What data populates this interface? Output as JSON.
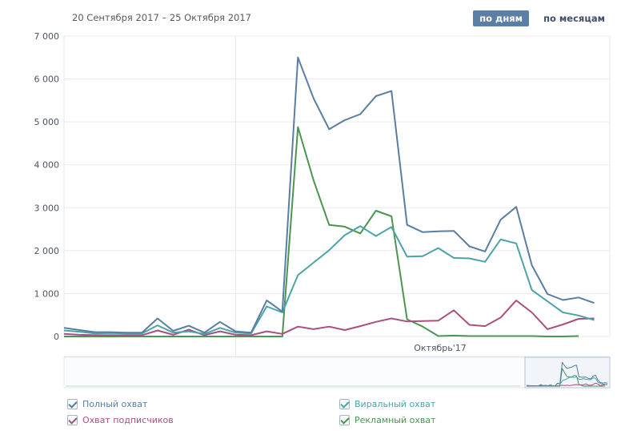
{
  "header": {
    "date_range": "20 Сентября 2017 – 25 Октября 2017"
  },
  "tabs": {
    "days": "по дням",
    "months": "по месяцам"
  },
  "chart_data": {
    "type": "line",
    "x": [
      1,
      2,
      3,
      4,
      5,
      6,
      7,
      8,
      9,
      10,
      11,
      12,
      13,
      14,
      15,
      16,
      17,
      18,
      19,
      20,
      21,
      22,
      23,
      24,
      25,
      26,
      27,
      28,
      29,
      30,
      31,
      32,
      33,
      34,
      35,
      36
    ],
    "yticks": [
      "7 000",
      "6 000",
      "5 000",
      "4 000",
      "3 000",
      "2 000",
      "1 000",
      "0"
    ],
    "ylim": [
      0,
      7000
    ],
    "x_annotation": "Октябрь'17",
    "grid": true,
    "legend_position": "bottom",
    "series": [
      {
        "name": "Полный охват",
        "color": "#597da3",
        "values": [
          200,
          150,
          100,
          100,
          90,
          90,
          420,
          130,
          250,
          90,
          340,
          120,
          90,
          840,
          580,
          6500,
          5550,
          4830,
          5040,
          5180,
          5600,
          5720,
          2600,
          2430,
          2450,
          2460,
          2100,
          1980,
          2720,
          3020,
          1660,
          990,
          850,
          910,
          780,
          null
        ]
      },
      {
        "name": "Виральный охват",
        "color": "#4ba3a8",
        "values": [
          140,
          110,
          70,
          80,
          70,
          70,
          260,
          90,
          120,
          60,
          200,
          90,
          70,
          700,
          560,
          1430,
          1720,
          2010,
          2360,
          2570,
          2340,
          2550,
          1860,
          1870,
          2060,
          1830,
          1820,
          1740,
          2260,
          2170,
          1080,
          820,
          560,
          490,
          380,
          null
        ]
      },
      {
        "name": "Охват подписчиков",
        "color": "#a8507e",
        "values": [
          60,
          40,
          30,
          30,
          30,
          30,
          140,
          40,
          160,
          30,
          120,
          40,
          30,
          120,
          60,
          230,
          170,
          230,
          150,
          240,
          340,
          420,
          350,
          360,
          370,
          610,
          270,
          240,
          440,
          840,
          560,
          170,
          280,
          410,
          420,
          null
        ]
      },
      {
        "name": "Рекламный охват",
        "color": "#4a9550",
        "values": [
          0,
          0,
          0,
          0,
          0,
          0,
          0,
          0,
          0,
          0,
          0,
          0,
          0,
          0,
          0,
          4880,
          3640,
          2600,
          2560,
          2400,
          2930,
          2800,
          400,
          230,
          10,
          20,
          10,
          10,
          10,
          10,
          10,
          0,
          0,
          10,
          null,
          null
        ]
      }
    ]
  },
  "legend": {
    "full": "Полный охват",
    "viral": "Виральный охват",
    "subscribers": "Охват подписчиков",
    "ads": "Рекламный охват"
  },
  "colors": {
    "accent": "#5b7ea5",
    "full": "#597da3",
    "viral": "#4ba3a8",
    "subscribers": "#a8507e",
    "ads": "#4a9550"
  }
}
